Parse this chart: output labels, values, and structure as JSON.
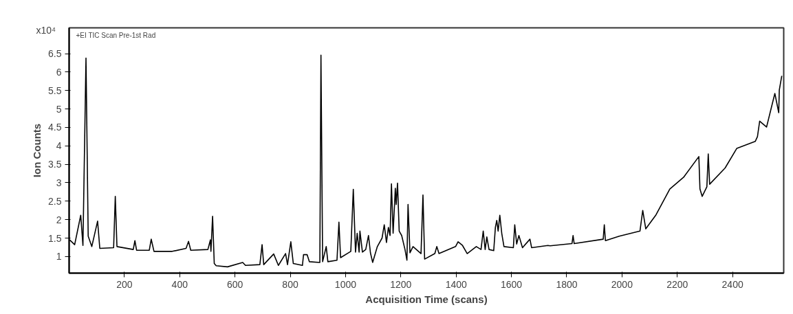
{
  "chart_data": {
    "type": "line",
    "title": "+EI TIC Scan Pre-1st Rad",
    "xlabel": "Acquisition Time (scans)",
    "ylabel": "Ion Counts",
    "annotations": [
      "x10⁴"
    ],
    "x": [
      2,
      20,
      42,
      50,
      61,
      69,
      82,
      103,
      111,
      161,
      167,
      173,
      232,
      238,
      244,
      290,
      297,
      307,
      373,
      423,
      432,
      440,
      502,
      511,
      513,
      519,
      525,
      532,
      573,
      628,
      638,
      690,
      698,
      704,
      740,
      757,
      783,
      790,
      802,
      811,
      844,
      848,
      861,
      869,
      907,
      911,
      917,
      930,
      936,
      969,
      976,
      982,
      1019,
      1028,
      1036,
      1042,
      1049,
      1052,
      1061,
      1073,
      1083,
      1090,
      1098,
      1115,
      1132,
      1140,
      1148,
      1155,
      1161,
      1166,
      1172,
      1180,
      1183,
      1188,
      1194,
      1203,
      1215,
      1222,
      1226,
      1233,
      1244,
      1273,
      1280,
      1286,
      1323,
      1330,
      1338,
      1398,
      1407,
      1423,
      1440,
      1473,
      1490,
      1498,
      1505,
      1511,
      1519,
      1536,
      1542,
      1547,
      1552,
      1558,
      1565,
      1573,
      1607,
      1612,
      1619,
      1627,
      1640,
      1667,
      1673,
      1732,
      1740,
      1819,
      1823,
      1827,
      1932,
      1936,
      1940,
      1990,
      2065,
      2075,
      2086,
      2123,
      2173,
      2223,
      2278,
      2282,
      2290,
      2307,
      2312,
      2317,
      2373,
      2415,
      2482,
      2490,
      2498,
      2523,
      2544,
      2553,
      2567,
      2569,
      2578
    ],
    "series": [
      {
        "color": "#000000",
        "values": [
          1.45,
          1.32,
          2.12,
          1.3,
          6.38,
          1.55,
          1.27,
          1.96,
          1.22,
          1.24,
          2.63,
          1.27,
          1.19,
          1.43,
          1.17,
          1.17,
          1.47,
          1.14,
          1.14,
          1.22,
          1.41,
          1.17,
          1.19,
          1.45,
          1.14,
          2.09,
          0.81,
          0.75,
          0.72,
          0.84,
          0.76,
          0.78,
          1.32,
          0.78,
          1.07,
          0.76,
          1.08,
          0.78,
          1.4,
          0.81,
          0.76,
          1.05,
          1.05,
          0.86,
          0.84,
          6.46,
          0.86,
          1.27,
          0.86,
          0.9,
          1.93,
          0.97,
          1.14,
          2.82,
          1.12,
          1.63,
          1.12,
          1.69,
          1.12,
          1.19,
          1.57,
          1.1,
          0.84,
          1.27,
          1.5,
          1.86,
          1.38,
          1.79,
          1.57,
          2.97,
          1.63,
          2.85,
          2.41,
          2.99,
          1.69,
          1.57,
          1.19,
          0.9,
          2.41,
          1.1,
          1.27,
          1.08,
          2.67,
          0.93,
          1.08,
          1.27,
          1.08,
          1.27,
          1.4,
          1.3,
          1.08,
          1.27,
          1.19,
          1.69,
          1.19,
          1.53,
          1.19,
          1.16,
          1.79,
          1.98,
          1.69,
          2.12,
          1.63,
          1.27,
          1.24,
          1.86,
          1.34,
          1.57,
          1.24,
          1.47,
          1.24,
          1.3,
          1.29,
          1.35,
          1.57,
          1.35,
          1.47,
          1.86,
          1.43,
          1.55,
          1.69,
          2.25,
          1.75,
          2.13,
          2.83,
          3.15,
          3.71,
          2.83,
          2.63,
          2.89,
          3.78,
          2.96,
          3.4,
          3.93,
          4.12,
          4.25,
          4.67,
          4.51,
          5.15,
          5.42,
          4.9,
          5.51,
          5.9
        ]
      }
    ],
    "xlim": [
      0,
      2585
    ],
    "ylim": [
      0.55,
      7.2
    ],
    "xticks": [
      200,
      400,
      600,
      800,
      1000,
      1200,
      1400,
      1600,
      1800,
      2000,
      2200,
      2400
    ],
    "yticks": [
      1,
      1.5,
      2,
      2.5,
      3,
      3.5,
      4,
      4.5,
      5,
      5.5,
      6,
      6.5
    ],
    "grid": false,
    "marker": "none",
    "line_style": "solid"
  }
}
